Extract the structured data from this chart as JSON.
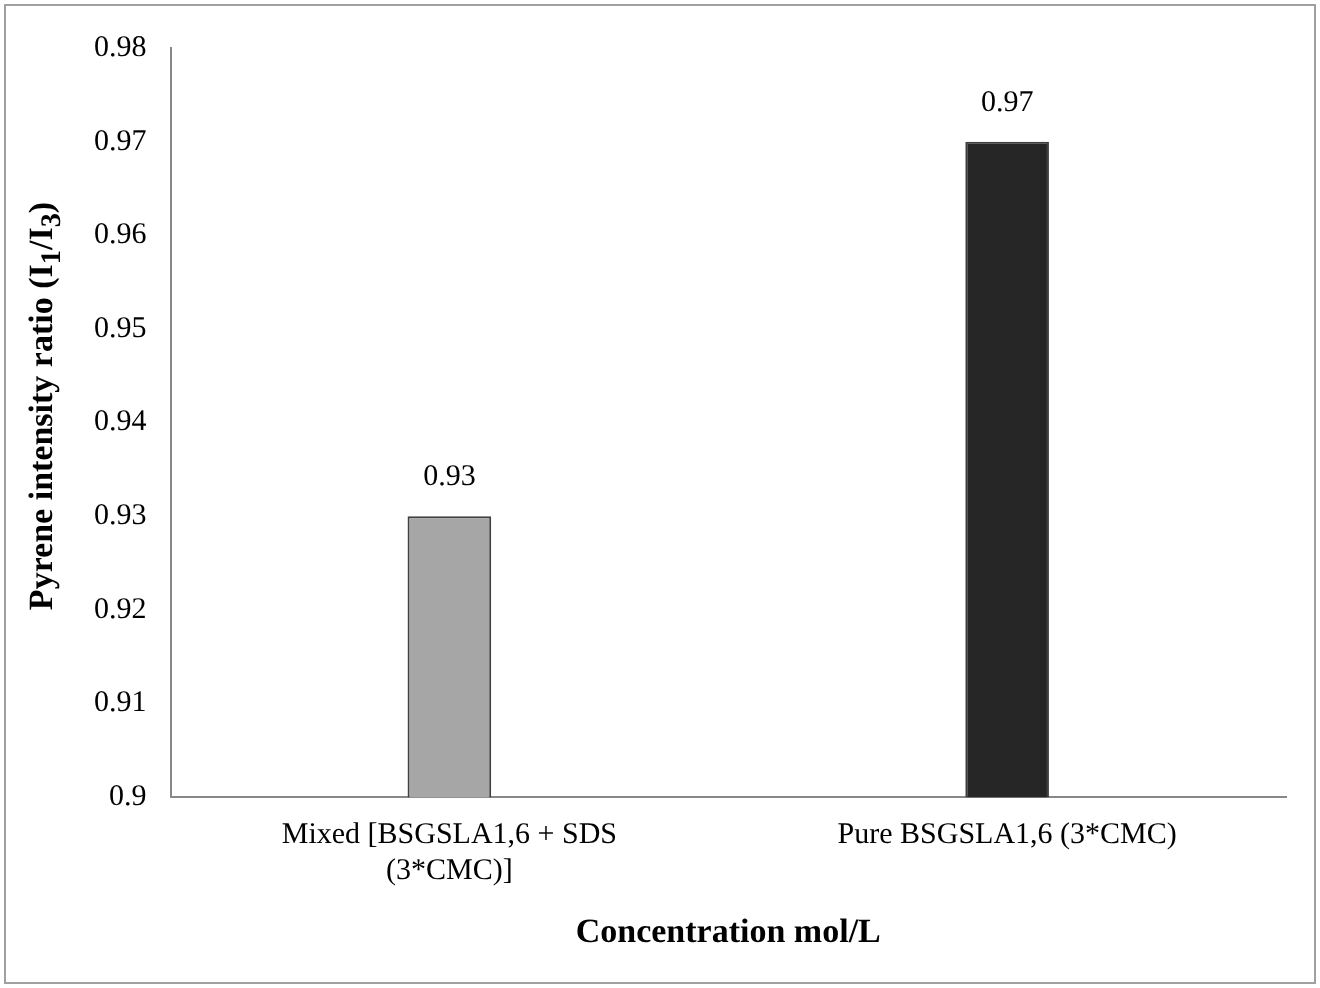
{
  "chart_data": {
    "type": "bar",
    "xlabel": "Concentration mol/L",
    "ylabel": "Pyrene intensity ratio (I$_{1}$/I$_{3}$)",
    "categories": [
      "Mixed [BSGSLA1,6 + SDS (3*CMC)]",
      "Pure BSGSLA1,6 (3*CMC)"
    ],
    "values": [
      0.93,
      0.97
    ],
    "colors": [
      "#a6a6a6",
      "#262626"
    ],
    "ylim": [
      0.9,
      0.98
    ],
    "yticks": [
      0.9,
      0.91,
      0.92,
      0.93,
      0.94,
      0.95,
      0.96,
      0.97,
      0.98
    ],
    "grid": false,
    "legend": false,
    "data_labels": true
  }
}
